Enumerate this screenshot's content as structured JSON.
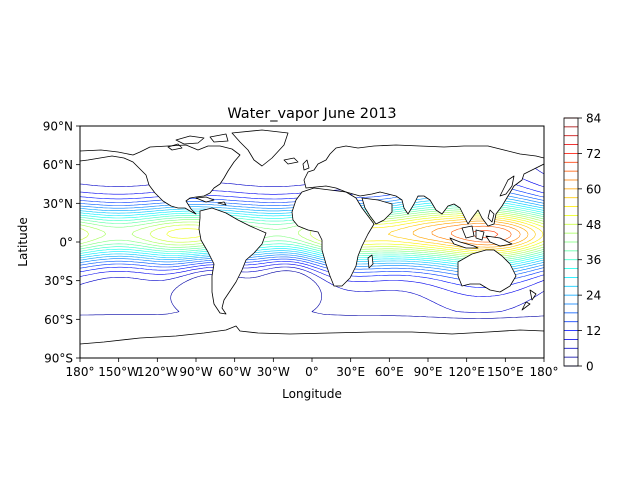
{
  "chart_data": {
    "type": "contour-map",
    "title": "Water_vapor June 2013",
    "xlabel": "Longitude",
    "ylabel": "Latitude",
    "xlim": [
      -180,
      180
    ],
    "ylim": [
      -90,
      90
    ],
    "x_ticks": [
      {
        "value": -180,
        "label": "180°"
      },
      {
        "value": -150,
        "label": "150°W"
      },
      {
        "value": -120,
        "label": "120°W"
      },
      {
        "value": -90,
        "label": "90°W"
      },
      {
        "value": -60,
        "label": "60°W"
      },
      {
        "value": -30,
        "label": "30°W"
      },
      {
        "value": 0,
        "label": "0°"
      },
      {
        "value": 30,
        "label": "30°E"
      },
      {
        "value": 60,
        "label": "60°E"
      },
      {
        "value": 90,
        "label": "90°E"
      },
      {
        "value": 120,
        "label": "120°E"
      },
      {
        "value": 150,
        "label": "150°E"
      },
      {
        "value": 180,
        "label": "180°"
      }
    ],
    "y_ticks": [
      {
        "value": 90,
        "label": "90°N"
      },
      {
        "value": 60,
        "label": "60°N"
      },
      {
        "value": 30,
        "label": "30°N"
      },
      {
        "value": 0,
        "label": "0°"
      },
      {
        "value": -30,
        "label": "30°S"
      },
      {
        "value": -60,
        "label": "60°S"
      },
      {
        "value": -90,
        "label": "90°S"
      }
    ],
    "colorbar": {
      "min": 0,
      "max": 84,
      "level_step": 3,
      "tick_values": [
        0,
        12,
        24,
        36,
        48,
        60,
        72,
        84
      ],
      "tick_labels": [
        "0",
        "12",
        "24",
        "36",
        "48",
        "60",
        "72",
        "84"
      ],
      "colormap": "jet"
    },
    "grid": false,
    "colors": {
      "coastline": "#000000",
      "frame": "#000000"
    }
  }
}
